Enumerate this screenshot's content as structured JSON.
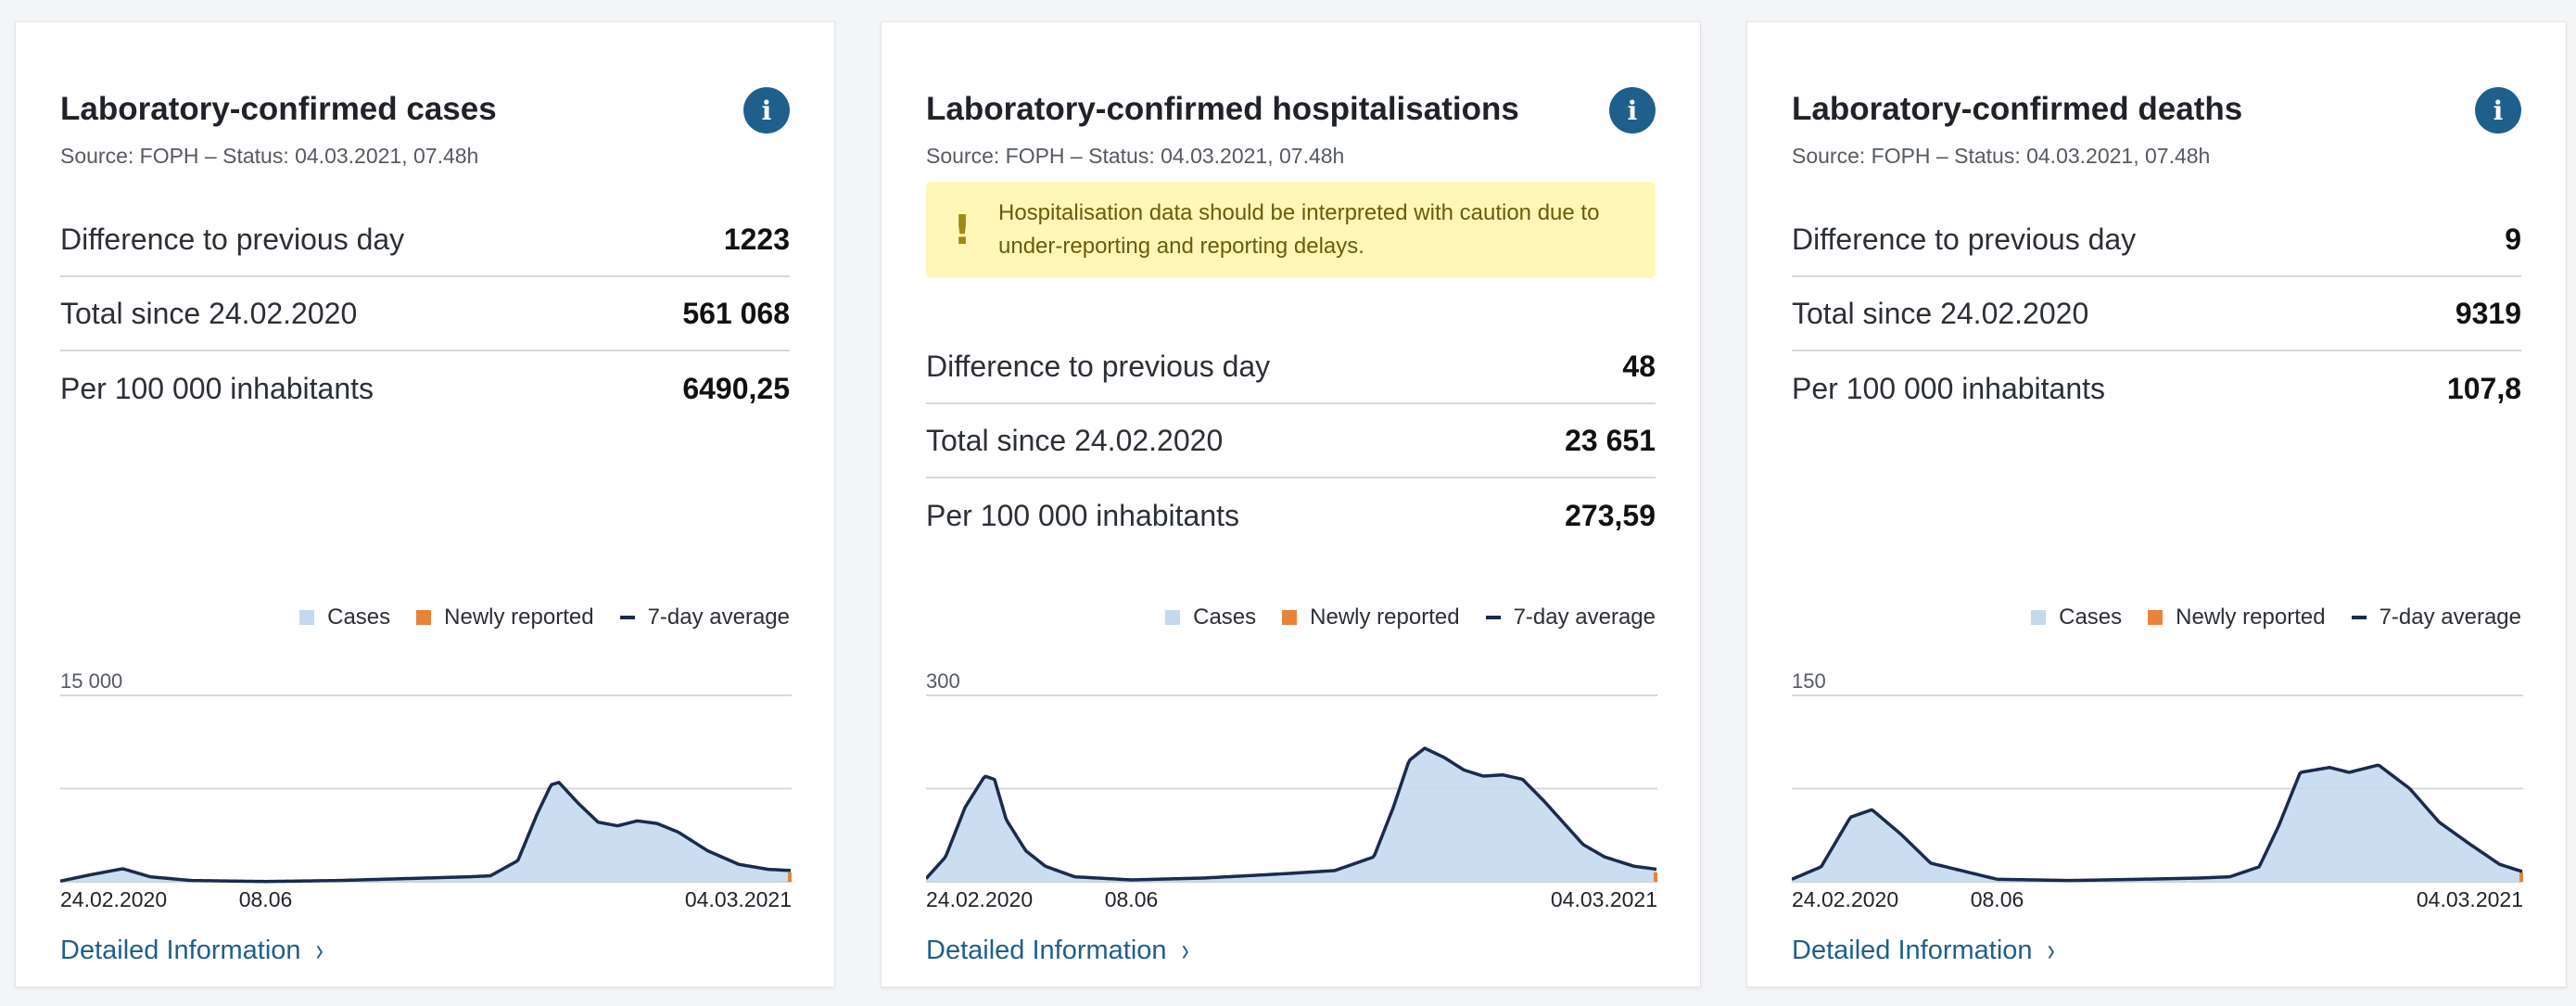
{
  "common": {
    "source": "Source: FOPH – Status: 04.03.2021, 07.48h",
    "detail_link": "Detailed Information",
    "info_icon_glyph": "i",
    "legend": {
      "cases": "Cases",
      "newly": "Newly reported",
      "avg": "7-day average"
    },
    "colors": {
      "bars": "#c5d9ee",
      "newly": "#e8833a",
      "avg": "#1a2b4c",
      "link": "#1e5f8c"
    }
  },
  "cards": [
    {
      "title": "Laboratory-confirmed cases",
      "stats": [
        {
          "label": "Difference to previous day",
          "value": "1223"
        },
        {
          "label": "Total since 24.02.2020",
          "value": "561 068"
        },
        {
          "label": "Per 100 000 inhabitants",
          "value": "6490,25"
        }
      ]
    },
    {
      "title": "Laboratory-confirmed hospitalisations",
      "warning": "Hospitalisation data should be interpreted with caution due to under-reporting and reporting delays.",
      "stats": [
        {
          "label": "Difference to previous day",
          "value": "48"
        },
        {
          "label": "Total since 24.02.2020",
          "value": "23 651"
        },
        {
          "label": "Per 100 000 inhabitants",
          "value": "273,59"
        }
      ]
    },
    {
      "title": "Laboratory-confirmed deaths",
      "stats": [
        {
          "label": "Difference to previous day",
          "value": "9"
        },
        {
          "label": "Total since 24.02.2020",
          "value": "9319"
        },
        {
          "label": "Per 100 000 inhabitants",
          "value": "107,8"
        }
      ]
    }
  ],
  "chart_data": [
    {
      "type": "area",
      "y_max_label": "15 000",
      "ylim": [
        0,
        15000
      ],
      "x_ticks": [
        "24.02.2020",
        "08.06",
        "04.03.2021"
      ],
      "series_name": "7-day average",
      "x": [
        "2020-02-24",
        "2020-03-10",
        "2020-03-27",
        "2020-04-10",
        "2020-05-01",
        "2020-06-08",
        "2020-07-15",
        "2020-08-20",
        "2020-09-20",
        "2020-10-01",
        "2020-10-15",
        "2020-10-25",
        "2020-11-01",
        "2020-11-05",
        "2020-11-15",
        "2020-11-25",
        "2020-12-05",
        "2020-12-15",
        "2020-12-25",
        "2021-01-05",
        "2021-01-20",
        "2021-02-05",
        "2021-02-20",
        "2021-03-04"
      ],
      "values": [
        50,
        550,
        1050,
        400,
        100,
        20,
        100,
        260,
        400,
        480,
        1700,
        5500,
        7800,
        8000,
        6300,
        4800,
        4500,
        4900,
        4700,
        4000,
        2500,
        1400,
        1000,
        900
      ]
    },
    {
      "type": "area",
      "y_max_label": "300",
      "ylim": [
        0,
        300
      ],
      "x_ticks": [
        "24.02.2020",
        "08.06",
        "04.03.2021"
      ],
      "series_name": "7-day average",
      "x": [
        "2020-02-24",
        "2020-03-05",
        "2020-03-15",
        "2020-03-25",
        "2020-03-30",
        "2020-04-05",
        "2020-04-15",
        "2020-04-25",
        "2020-05-10",
        "2020-06-08",
        "2020-07-15",
        "2020-08-20",
        "2020-09-20",
        "2020-10-10",
        "2020-10-20",
        "2020-10-28",
        "2020-11-05",
        "2020-11-15",
        "2020-11-25",
        "2020-12-05",
        "2020-12-15",
        "2020-12-25",
        "2021-01-05",
        "2021-01-15",
        "2021-01-25",
        "2021-02-05",
        "2021-02-20",
        "2021-03-04"
      ],
      "values": [
        5,
        40,
        120,
        170,
        165,
        100,
        50,
        25,
        8,
        3,
        6,
        12,
        18,
        40,
        120,
        195,
        215,
        200,
        180,
        170,
        172,
        165,
        130,
        95,
        60,
        40,
        25,
        20
      ]
    },
    {
      "type": "area",
      "y_max_label": "150",
      "ylim": [
        0,
        150
      ],
      "x_ticks": [
        "24.02.2020",
        "08.06",
        "04.03.2021"
      ],
      "series_name": "7-day average",
      "x": [
        "2020-02-24",
        "2020-03-10",
        "2020-03-25",
        "2020-04-05",
        "2020-04-20",
        "2020-05-05",
        "2020-06-08",
        "2020-07-15",
        "2020-08-20",
        "2020-09-20",
        "2020-10-05",
        "2020-10-20",
        "2020-10-30",
        "2020-11-10",
        "2020-11-25",
        "2020-12-05",
        "2020-12-20",
        "2021-01-05",
        "2021-01-20",
        "2021-02-05",
        "2021-02-20",
        "2021-03-04"
      ],
      "values": [
        2,
        12,
        52,
        58,
        38,
        15,
        2,
        1,
        2,
        3,
        4,
        12,
        45,
        88,
        92,
        88,
        94,
        75,
        48,
        30,
        14,
        8
      ]
    }
  ]
}
